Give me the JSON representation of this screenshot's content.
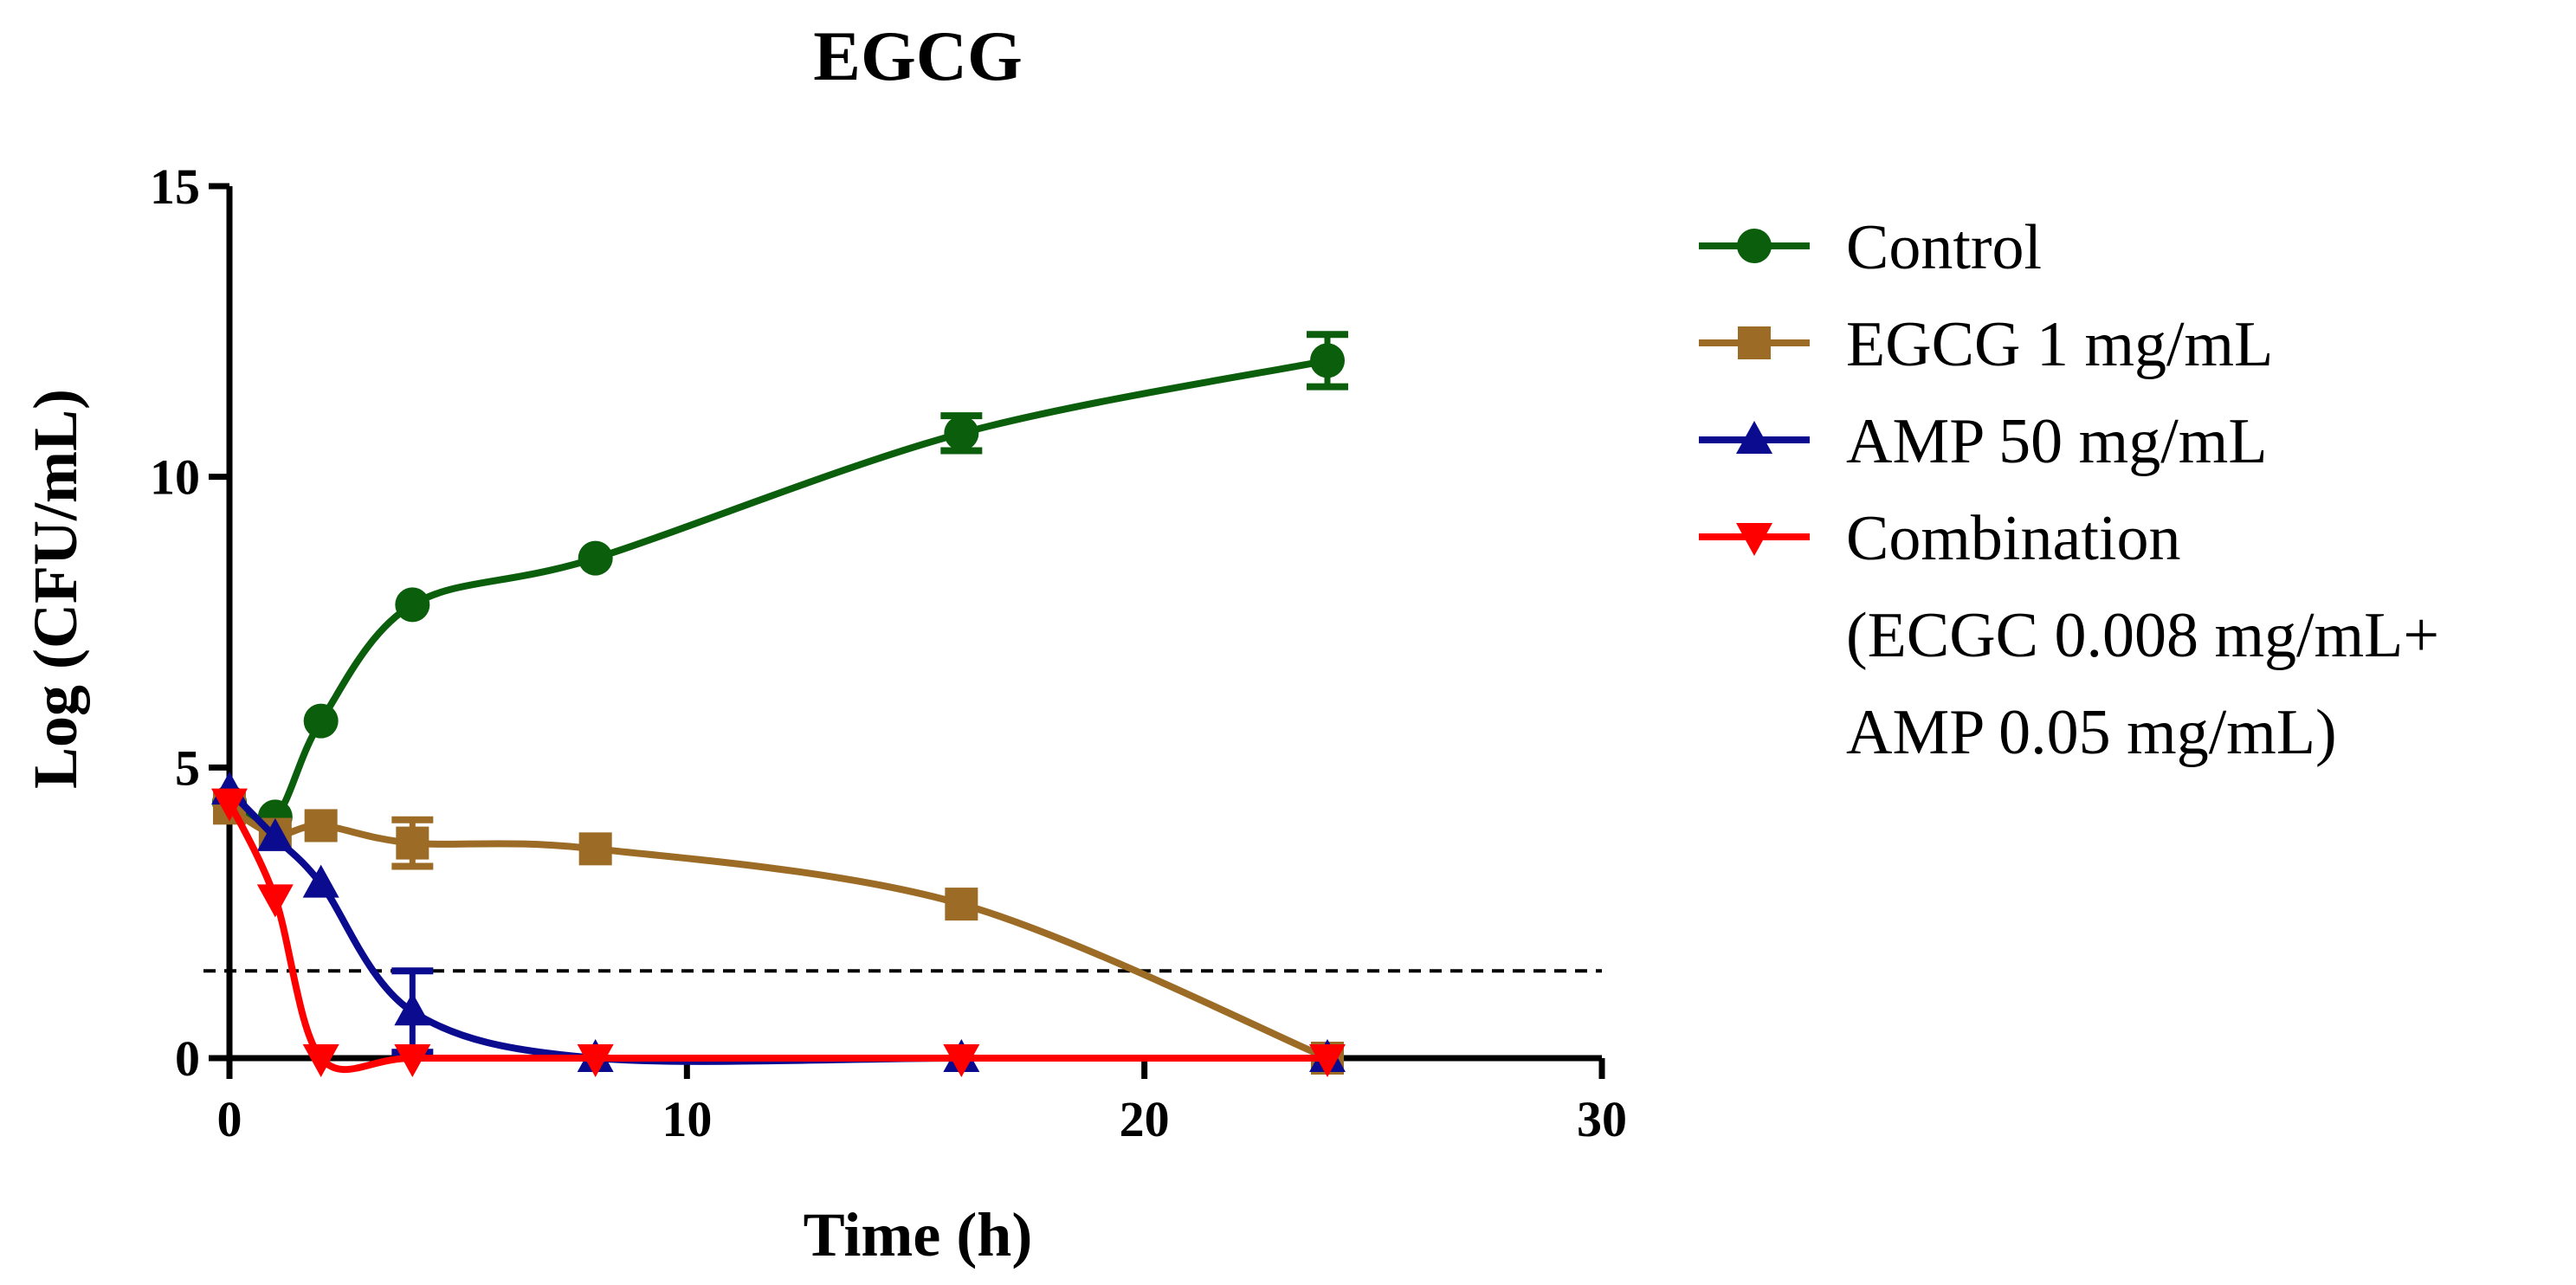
{
  "chart_data": {
    "type": "line",
    "title": "EGCG",
    "xlabel": "Time (h)",
    "ylabel": "Log (CFU/mL)",
    "xlim": [
      0,
      30
    ],
    "ylim": [
      0,
      15
    ],
    "xticks": [
      0,
      10,
      20,
      30
    ],
    "yticks": [
      0,
      5,
      10,
      15
    ],
    "grid": false,
    "legend_position": "right",
    "reference_line": {
      "y": 1.5,
      "style": "dashed"
    },
    "series": [
      {
        "name": "Control",
        "marker": "circle",
        "color": "#0b5e0b",
        "x": [
          0,
          1,
          2,
          4,
          8,
          16,
          24
        ],
        "y": [
          4.4,
          4.15,
          5.8,
          7.8,
          8.6,
          10.75,
          12.0
        ],
        "err": [
          0,
          0,
          0,
          0,
          0,
          0.3,
          0.45
        ]
      },
      {
        "name": "EGCG 1 mg/mL",
        "marker": "square",
        "color": "#9c6b25",
        "x": [
          0,
          1,
          2,
          4,
          8,
          16,
          24
        ],
        "y": [
          4.3,
          3.85,
          4.0,
          3.7,
          3.6,
          2.65,
          0
        ],
        "err": [
          0,
          0,
          0,
          0.4,
          0,
          0,
          0
        ]
      },
      {
        "name": "AMP 50 mg/mL",
        "marker": "triangle-up",
        "color": "#0b0b8f",
        "x": [
          0,
          1,
          2,
          4,
          8,
          16,
          24
        ],
        "y": [
          4.6,
          3.8,
          3.0,
          0.8,
          0,
          0,
          0
        ],
        "err": [
          0,
          0,
          0,
          0.7,
          0,
          0,
          0
        ]
      },
      {
        "name": "Combination",
        "name_lines": [
          "Combination",
          "(ECGC 0.008 mg/mL+",
          "AMP 0.05 mg/mL)"
        ],
        "marker": "triangle-down",
        "color": "#ff0000",
        "x": [
          0,
          1,
          2,
          4,
          8,
          16,
          24
        ],
        "y": [
          4.4,
          2.75,
          0,
          0,
          0,
          0,
          0
        ],
        "err": [
          0,
          0,
          0,
          0,
          0,
          0,
          0
        ]
      }
    ]
  }
}
